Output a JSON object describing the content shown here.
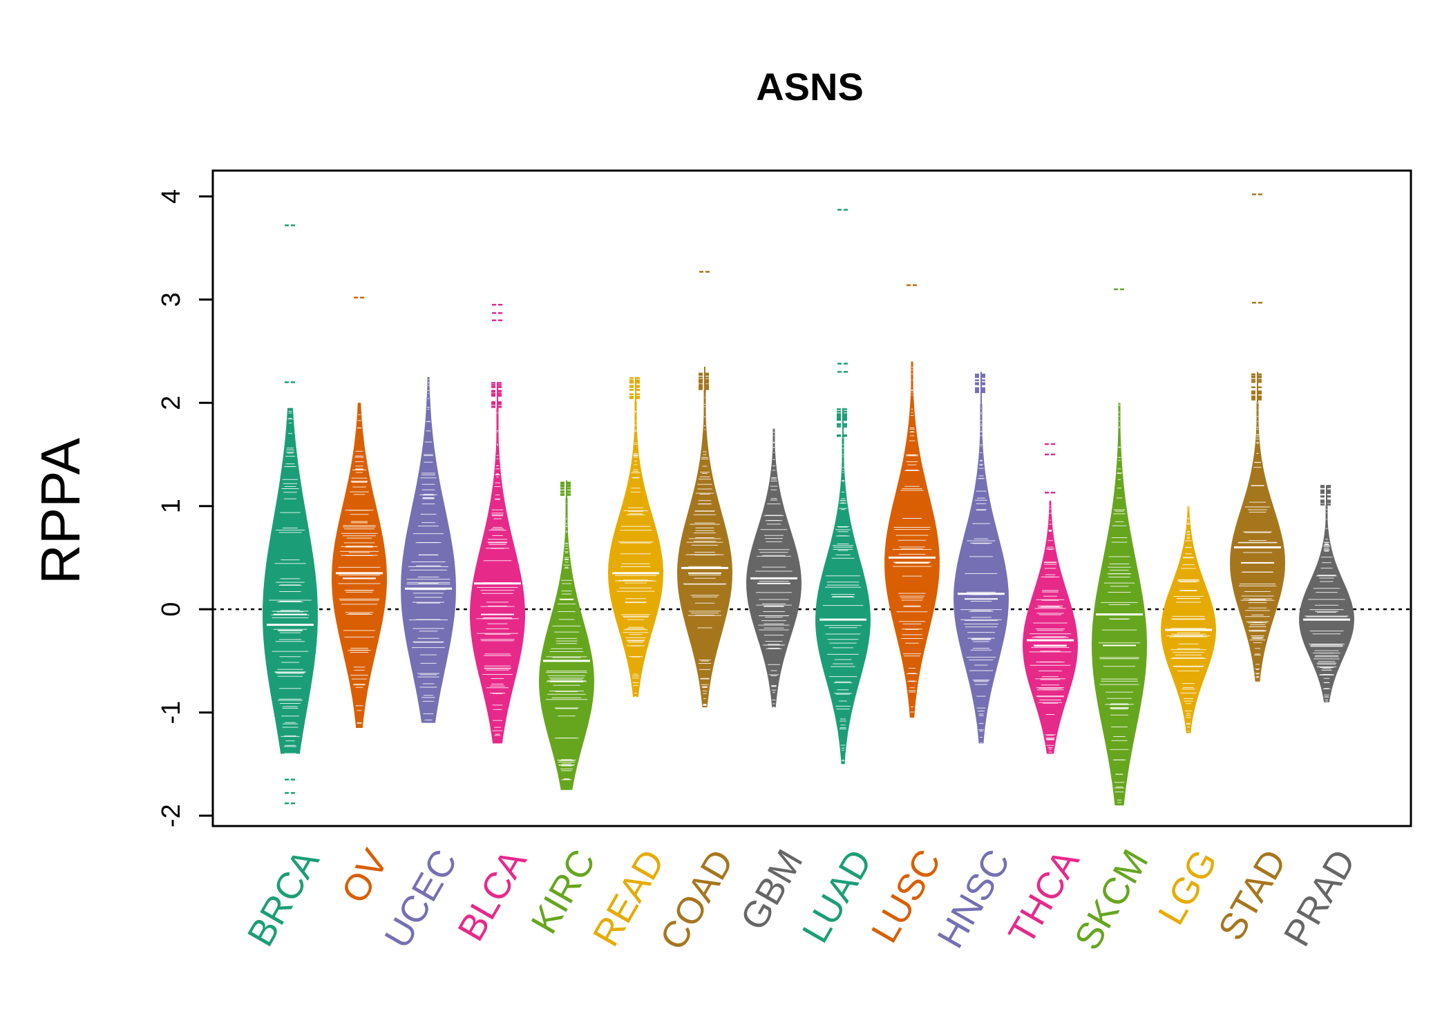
{
  "chart_data": {
    "type": "violin",
    "title": "ASNS",
    "ylabel": "RPPA",
    "xlabel": "",
    "ylim": [
      -2.1,
      4.25
    ],
    "yticks": [
      -2,
      -1,
      0,
      1,
      2,
      3,
      4
    ],
    "reference_line": 0,
    "series": [
      {
        "name": "BRCA",
        "color": "#1B9E77",
        "median": -0.05,
        "mean": -0.15,
        "q1": -0.7,
        "q3": 0.55,
        "min": -1.4,
        "max": 1.95,
        "outliers": [
          3.72,
          2.2,
          -1.65,
          -1.78,
          -1.88
        ]
      },
      {
        "name": "OV",
        "color": "#D95F02",
        "median": 0.3,
        "mean": 0.35,
        "q1": -0.1,
        "q3": 0.85,
        "min": -1.15,
        "max": 2.0,
        "outliers": [
          3.02
        ]
      },
      {
        "name": "UCEC",
        "color": "#7570B3",
        "median": 0.2,
        "mean": 0.2,
        "q1": -0.3,
        "q3": 0.75,
        "min": -1.1,
        "max": 2.25,
        "outliers": []
      },
      {
        "name": "BLCA",
        "color": "#E7298A",
        "median": -0.05,
        "mean": 0.25,
        "q1": -0.35,
        "q3": 0.55,
        "min": -1.3,
        "max": 2.2,
        "outliers": [
          2.8,
          2.87,
          2.95
        ]
      },
      {
        "name": "KIRC",
        "color": "#66A61E",
        "median": -0.7,
        "mean": -0.5,
        "q1": -1.1,
        "q3": -0.3,
        "min": -1.75,
        "max": 1.25,
        "outliers": []
      },
      {
        "name": "READ",
        "color": "#E6AB02",
        "median": 0.35,
        "mean": 0.35,
        "q1": 0.0,
        "q3": 0.75,
        "min": -0.85,
        "max": 2.25,
        "outliers": []
      },
      {
        "name": "COAD",
        "color": "#A6761D",
        "median": 0.35,
        "mean": 0.4,
        "q1": 0.0,
        "q3": 0.8,
        "min": -0.95,
        "max": 2.35,
        "outliers": [
          3.27
        ]
      },
      {
        "name": "GBM",
        "color": "#666666",
        "median": 0.25,
        "mean": 0.3,
        "q1": -0.1,
        "q3": 0.6,
        "min": -0.95,
        "max": 1.75,
        "outliers": []
      },
      {
        "name": "LUAD",
        "color": "#1B9E77",
        "median": -0.1,
        "mean": -0.1,
        "q1": -0.5,
        "q3": 0.3,
        "min": -1.5,
        "max": 1.95,
        "outliers": [
          3.87,
          2.3,
          2.38
        ]
      },
      {
        "name": "LUSC",
        "color": "#D95F02",
        "median": 0.45,
        "mean": 0.5,
        "q1": 0.05,
        "q3": 0.95,
        "min": -1.05,
        "max": 2.4,
        "outliers": [
          3.14
        ]
      },
      {
        "name": "HNSC",
        "color": "#7570B3",
        "median": 0.1,
        "mean": 0.15,
        "q1": -0.3,
        "q3": 0.55,
        "min": -1.3,
        "max": 2.3,
        "outliers": []
      },
      {
        "name": "THCA",
        "color": "#E7298A",
        "median": -0.35,
        "mean": -0.3,
        "q1": -0.7,
        "q3": 0.0,
        "min": -1.4,
        "max": 1.05,
        "outliers": [
          1.5,
          1.6,
          1.13
        ]
      },
      {
        "name": "SKCM",
        "color": "#66A61E",
        "median": -0.35,
        "mean": -0.05,
        "q1": -0.9,
        "q3": 0.2,
        "min": -1.9,
        "max": 2.0,
        "outliers": [
          3.1
        ]
      },
      {
        "name": "LGG",
        "color": "#E6AB02",
        "median": -0.2,
        "mean": -0.2,
        "q1": -0.5,
        "q3": 0.1,
        "min": -1.2,
        "max": 1.0,
        "outliers": []
      },
      {
        "name": "STAD",
        "color": "#A6761D",
        "median": 0.45,
        "mean": 0.6,
        "q1": 0.1,
        "q3": 0.8,
        "min": -0.7,
        "max": 2.3,
        "outliers": [
          4.02,
          2.97
        ]
      },
      {
        "name": "PRAD",
        "color": "#666666",
        "median": -0.1,
        "mean": -0.1,
        "q1": -0.35,
        "q3": 0.15,
        "min": -0.9,
        "max": 1.2,
        "outliers": []
      }
    ]
  }
}
